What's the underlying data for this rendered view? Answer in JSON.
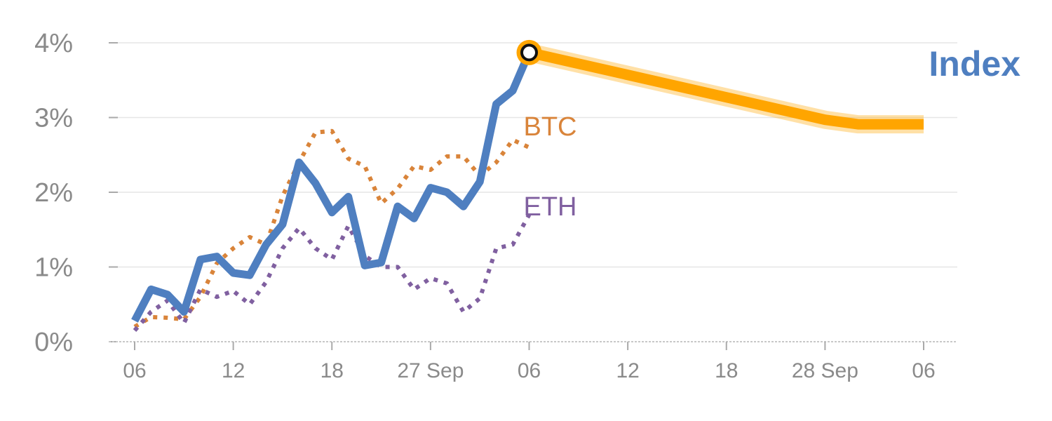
{
  "chart_data": {
    "type": "line",
    "title": "",
    "xlabel": "",
    "ylabel": "",
    "ylim": [
      0,
      4
    ],
    "grid": true,
    "y_ticks": [
      "0%",
      "1%",
      "2%",
      "3%",
      "4%"
    ],
    "x_ticks": [
      "06",
      "12",
      "18",
      "27 Sep",
      "06",
      "12",
      "18",
      "28 Sep",
      "06"
    ],
    "x_tick_positions": [
      0,
      6,
      12,
      18,
      24,
      30,
      36,
      42,
      48
    ],
    "colors": {
      "index": "#4f7fc0",
      "btc": "#d9843a",
      "eth": "#8060a0",
      "forecast": "#ffa500",
      "grid": "#e6e6e6",
      "axis": "#aaaaaa"
    },
    "series": [
      {
        "name": "BTC",
        "style": "dotted",
        "x": [
          0,
          1,
          2,
          3,
          4,
          5,
          6,
          7,
          8,
          9,
          10,
          11,
          12,
          13,
          14,
          15,
          16,
          17,
          18,
          19,
          20,
          21,
          22,
          23,
          24
        ],
        "values": [
          0.2,
          0.33,
          0.32,
          0.3,
          0.6,
          1.05,
          1.25,
          1.4,
          1.3,
          1.95,
          2.4,
          2.8,
          2.82,
          2.45,
          2.35,
          1.85,
          2.05,
          2.35,
          2.3,
          2.48,
          2.48,
          2.22,
          2.4,
          2.7,
          2.6
        ]
      },
      {
        "name": "ETH",
        "style": "dotted",
        "x": [
          0,
          1,
          2,
          3,
          4,
          5,
          6,
          7,
          8,
          9,
          10,
          11,
          12,
          13,
          14,
          15,
          16,
          17,
          18,
          19,
          20,
          21,
          22,
          23,
          24
        ],
        "values": [
          0.15,
          0.4,
          0.55,
          0.25,
          0.7,
          0.6,
          0.68,
          0.5,
          0.8,
          1.25,
          1.52,
          1.25,
          1.1,
          1.55,
          1.15,
          1.0,
          1.0,
          0.7,
          0.85,
          0.78,
          0.4,
          0.58,
          1.25,
          1.3,
          1.7
        ]
      },
      {
        "name": "Index",
        "style": "solid",
        "x": [
          0,
          1,
          2,
          3,
          4,
          5,
          6,
          7,
          8,
          9,
          10,
          11,
          12,
          13,
          14,
          15,
          16,
          17,
          18,
          19,
          20,
          21,
          22,
          23,
          24
        ],
        "values": [
          0.28,
          0.7,
          0.63,
          0.4,
          1.1,
          1.14,
          0.92,
          0.89,
          1.3,
          1.57,
          2.4,
          2.12,
          1.73,
          1.94,
          1.02,
          1.06,
          1.81,
          1.65,
          2.06,
          2.0,
          1.81,
          2.14,
          3.18,
          3.36,
          3.87
        ]
      },
      {
        "name": "Index",
        "style": "forecast",
        "x": [
          24,
          42,
          44,
          48
        ],
        "values": [
          3.87,
          2.97,
          2.91,
          2.91
        ]
      }
    ],
    "marker": {
      "x": 24,
      "y": 3.87
    },
    "labels": {
      "btc": "BTC",
      "eth": "ETH",
      "index": "Index"
    }
  }
}
